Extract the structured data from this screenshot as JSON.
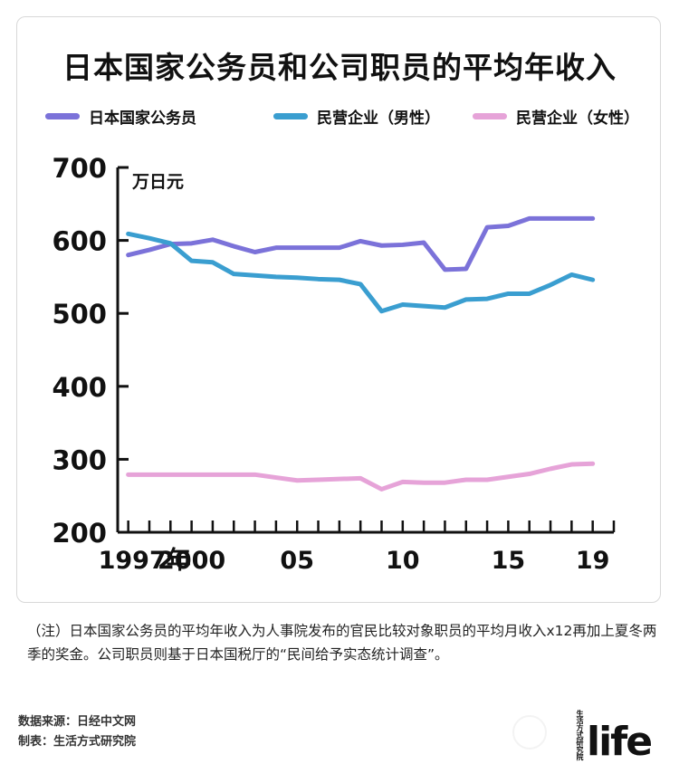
{
  "title": "日本国家公务员和公司职员的平均年收入",
  "legend": [
    {
      "label": "日本国家公务员",
      "color": "#7b72d9"
    },
    {
      "label": "民营企业（男性）",
      "color": "#3a9ed0"
    },
    {
      "label": "民营企业（女性）",
      "color": "#e6a3d8"
    }
  ],
  "chart_data": {
    "type": "line",
    "unit_label": "万日元",
    "y_ticks": [
      "700",
      "600",
      "500",
      "400",
      "300",
      "200"
    ],
    "x_ticks": [
      "1997年",
      "2000",
      "05",
      "10",
      "15",
      "19"
    ],
    "x_tick_positions": [
      1997,
      2000,
      2005,
      2010,
      2015,
      2019
    ],
    "ylim": [
      200,
      700
    ],
    "xlim": [
      1996.5,
      2020
    ],
    "x": [
      1997,
      1998,
      1999,
      2000,
      2001,
      2002,
      2003,
      2004,
      2005,
      2006,
      2007,
      2008,
      2009,
      2010,
      2011,
      2012,
      2013,
      2014,
      2015,
      2016,
      2017,
      2018,
      2019
    ],
    "series": [
      {
        "name": "日本国家公务员",
        "color": "#7b72d9",
        "values": [
          580,
          587,
          595,
          596,
          601,
          592,
          584,
          590,
          590,
          590,
          590,
          599,
          593,
          594,
          597,
          560,
          561,
          618,
          620,
          630,
          630,
          630,
          630
        ]
      },
      {
        "name": "民营企业（男性）",
        "color": "#3a9ed0",
        "values": [
          609,
          603,
          596,
          572,
          570,
          554,
          552,
          550,
          549,
          547,
          546,
          540,
          503,
          512,
          510,
          508,
          519,
          520,
          527,
          527,
          539,
          553,
          546
        ]
      },
      {
        "name": "民营企业（女性）",
        "color": "#e6a3d8",
        "values": [
          279,
          279,
          279,
          279,
          279,
          279,
          279,
          275,
          271,
          272,
          273,
          274,
          259,
          269,
          268,
          268,
          272,
          272,
          276,
          280,
          287,
          293,
          294
        ]
      }
    ]
  },
  "note": "（注）日本国家公务员的平均年收入为人事院发布的官民比较对象职员的平均月收入x12再加上夏冬两季的奖金。公司职员则基于日本国税厅的“民间给予实态统计调查”。",
  "source_line": "数据来源：日经中文网",
  "maker_line": "制表：生活方式研究院",
  "logo": {
    "strip": "生活方式研究院",
    "word": "life"
  }
}
